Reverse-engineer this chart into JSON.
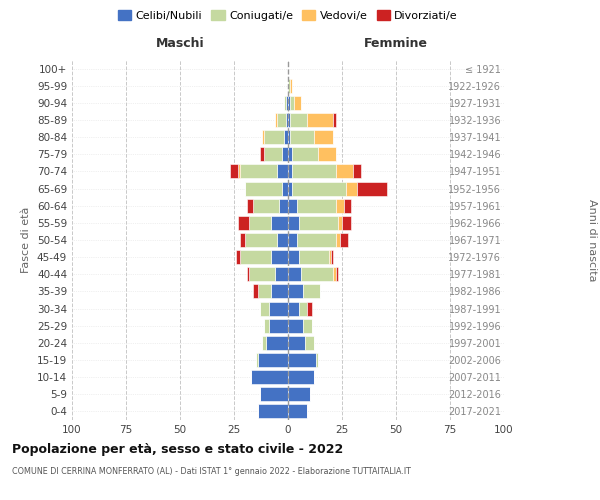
{
  "age_groups": [
    "0-4",
    "5-9",
    "10-14",
    "15-19",
    "20-24",
    "25-29",
    "30-34",
    "35-39",
    "40-44",
    "45-49",
    "50-54",
    "55-59",
    "60-64",
    "65-69",
    "70-74",
    "75-79",
    "80-84",
    "85-89",
    "90-94",
    "95-99",
    "100+"
  ],
  "birth_years": [
    "2017-2021",
    "2012-2016",
    "2007-2011",
    "2002-2006",
    "1997-2001",
    "1992-1996",
    "1987-1991",
    "1982-1986",
    "1977-1981",
    "1972-1976",
    "1967-1971",
    "1962-1966",
    "1957-1961",
    "1952-1956",
    "1947-1951",
    "1942-1946",
    "1937-1941",
    "1932-1936",
    "1927-1931",
    "1922-1926",
    "≤ 1921"
  ],
  "colors": {
    "celibi": "#4472c4",
    "coniugati": "#c5d9a0",
    "vedovi": "#ffc060",
    "divorziati": "#cc2222"
  },
  "maschi": {
    "celibi": [
      14,
      13,
      17,
      14,
      10,
      9,
      9,
      8,
      6,
      8,
      5,
      8,
      4,
      3,
      5,
      3,
      2,
      1,
      1,
      0,
      0
    ],
    "coniugati": [
      0,
      0,
      0,
      1,
      2,
      2,
      4,
      6,
      12,
      14,
      15,
      10,
      12,
      17,
      17,
      8,
      9,
      4,
      1,
      0,
      0
    ],
    "vedovi": [
      0,
      0,
      0,
      0,
      0,
      0,
      0,
      0,
      0,
      0,
      0,
      0,
      0,
      0,
      1,
      0,
      1,
      1,
      0,
      0,
      0
    ],
    "divorziati": [
      0,
      0,
      0,
      0,
      0,
      0,
      0,
      2,
      1,
      2,
      2,
      5,
      3,
      0,
      4,
      2,
      0,
      0,
      0,
      0,
      0
    ]
  },
  "femmine": {
    "celibi": [
      9,
      10,
      12,
      13,
      8,
      7,
      5,
      7,
      6,
      5,
      4,
      5,
      4,
      2,
      2,
      2,
      1,
      1,
      1,
      0,
      0
    ],
    "coniugati": [
      0,
      0,
      0,
      1,
      4,
      4,
      4,
      8,
      15,
      14,
      18,
      18,
      18,
      25,
      20,
      12,
      11,
      8,
      2,
      1,
      0
    ],
    "vedovi": [
      0,
      0,
      0,
      0,
      0,
      0,
      0,
      0,
      1,
      1,
      2,
      2,
      4,
      5,
      8,
      8,
      9,
      12,
      3,
      1,
      0
    ],
    "divorziati": [
      0,
      0,
      0,
      0,
      0,
      0,
      2,
      0,
      1,
      1,
      4,
      4,
      3,
      14,
      4,
      0,
      0,
      1,
      0,
      0,
      0
    ]
  },
  "xlim": [
    -100,
    100
  ],
  "xticks": [
    -100,
    -75,
    -50,
    -25,
    0,
    25,
    50,
    75,
    100
  ],
  "xtick_labels": [
    "100",
    "75",
    "50",
    "25",
    "0",
    "25",
    "50",
    "75",
    "100"
  ],
  "title": "Popolazione per età, sesso e stato civile - 2022",
  "subtitle": "COMUNE DI CERRINA MONFERRATO (AL) - Dati ISTAT 1° gennaio 2022 - Elaborazione TUTTAITALIA.IT",
  "ylabel_left": "Fasce di età",
  "ylabel_right": "Anni di nascita",
  "legend_labels": [
    "Celibi/Nubili",
    "Coniugati/e",
    "Vedovi/e",
    "Divorziati/e"
  ],
  "maschi_label": "Maschi",
  "femmine_label": "Femmine",
  "background_color": "#ffffff"
}
